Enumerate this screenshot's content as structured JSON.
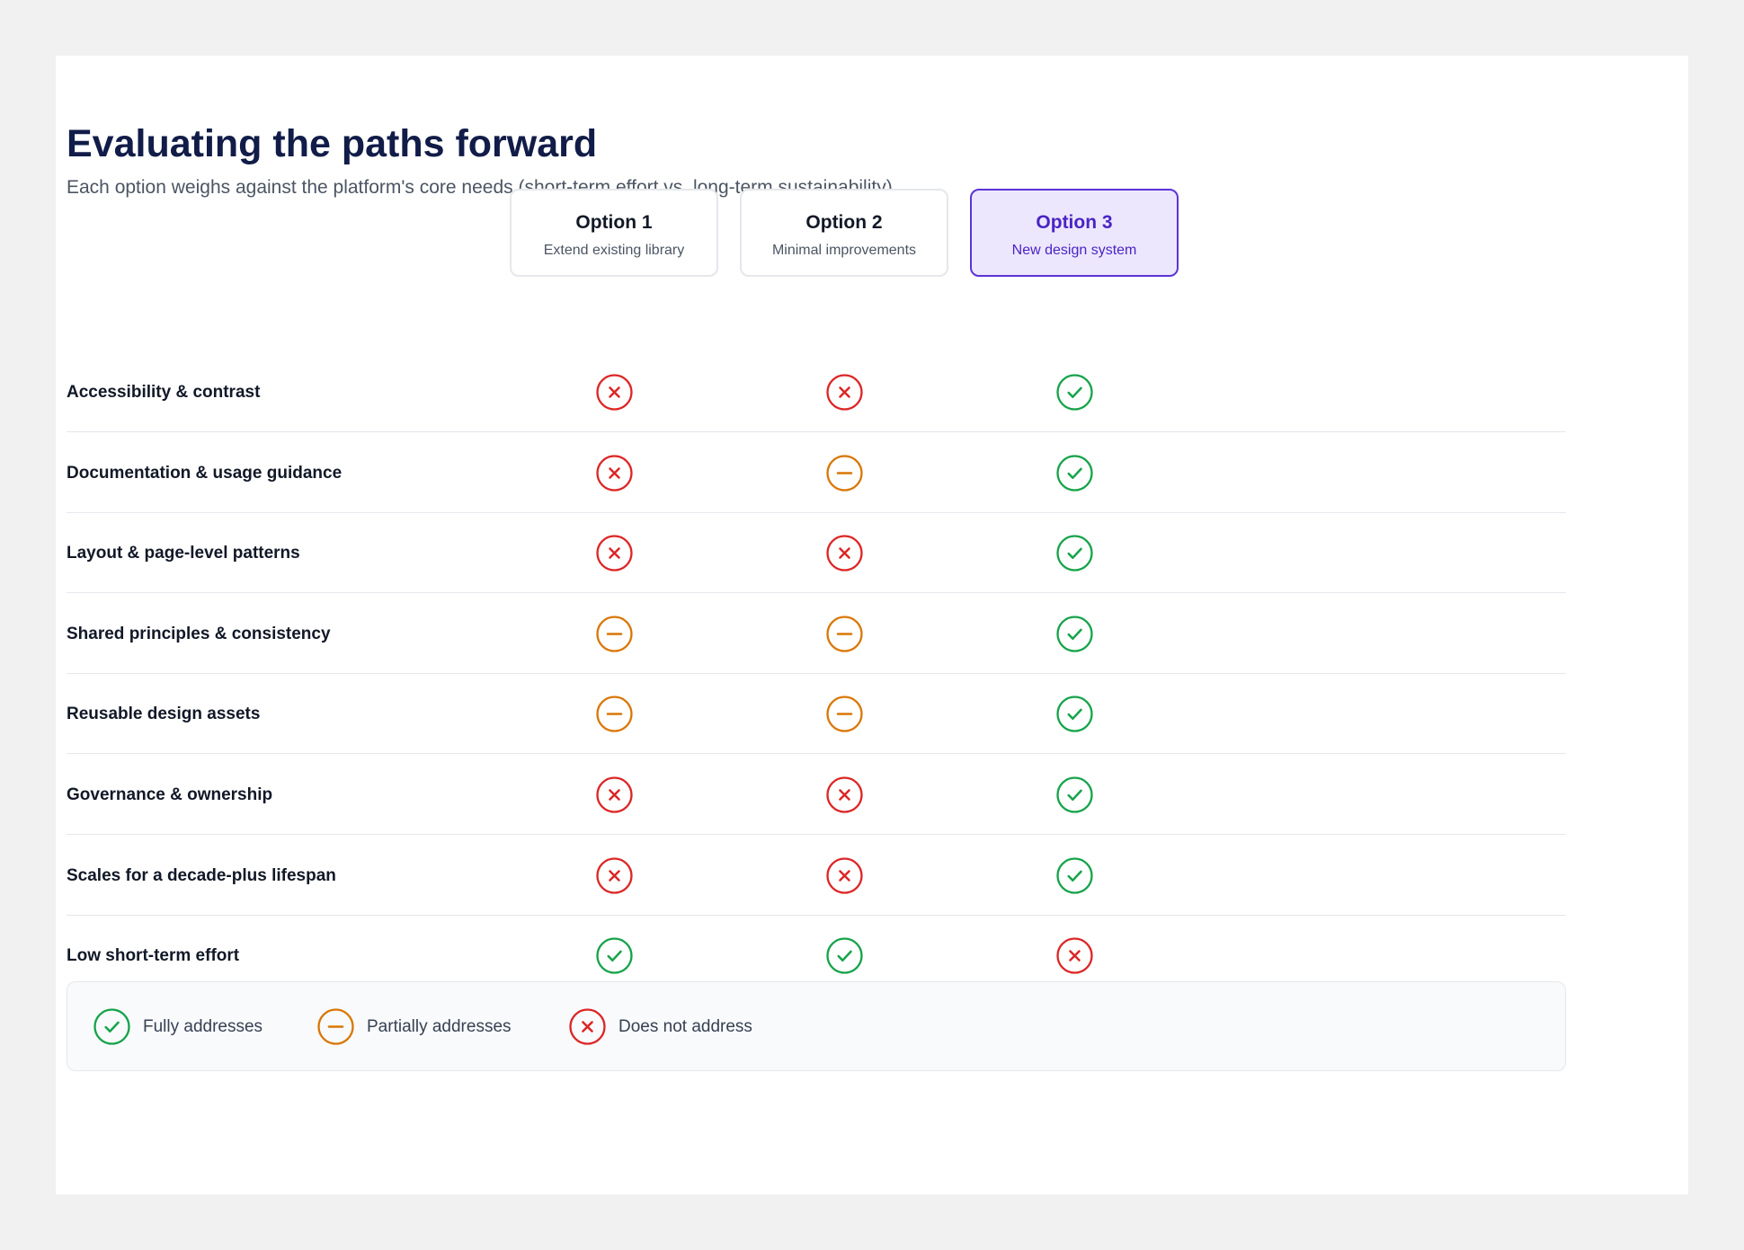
{
  "page": {
    "title": "Evaluating the paths forward",
    "subtitle": "Each option weighs against the platform's core needs (short-term effort vs. long-term sustainability)"
  },
  "options": [
    {
      "name": "Option 1",
      "description": "Extend existing library",
      "highlighted": false
    },
    {
      "name": "Option 2",
      "description": "Minimal improvements",
      "highlighted": false
    },
    {
      "name": "Option 3",
      "description": "New design system",
      "highlighted": true
    }
  ],
  "criteria": [
    {
      "label": "Accessibility & contrast",
      "ratings": [
        "none",
        "none",
        "full"
      ]
    },
    {
      "label": "Documentation & usage guidance",
      "ratings": [
        "none",
        "partial",
        "full"
      ]
    },
    {
      "label": "Layout & page-level patterns",
      "ratings": [
        "none",
        "none",
        "full"
      ]
    },
    {
      "label": "Shared principles & consistency",
      "ratings": [
        "partial",
        "partial",
        "full"
      ]
    },
    {
      "label": "Reusable design assets",
      "ratings": [
        "partial",
        "partial",
        "full"
      ]
    },
    {
      "label": "Governance & ownership",
      "ratings": [
        "none",
        "none",
        "full"
      ]
    },
    {
      "label": "Scales for a decade-plus lifespan",
      "ratings": [
        "none",
        "none",
        "full"
      ]
    },
    {
      "label": "Low short-term effort",
      "ratings": [
        "full",
        "full",
        "none"
      ]
    }
  ],
  "legend": [
    {
      "status": "full",
      "label": "Fully addresses"
    },
    {
      "status": "partial",
      "label": "Partially addresses"
    },
    {
      "status": "none",
      "label": "Does not address"
    }
  ],
  "status_styles": {
    "full": {
      "icon": "check-circle-icon",
      "color": "#16a34a"
    },
    "partial": {
      "icon": "minus-circle-icon",
      "color": "#d97706"
    },
    "none": {
      "icon": "x-circle-icon",
      "color": "#dc2626"
    }
  },
  "colors": {
    "accent": "#5b34d6",
    "accent_background": "#ede7fe",
    "title": "#111c48"
  }
}
